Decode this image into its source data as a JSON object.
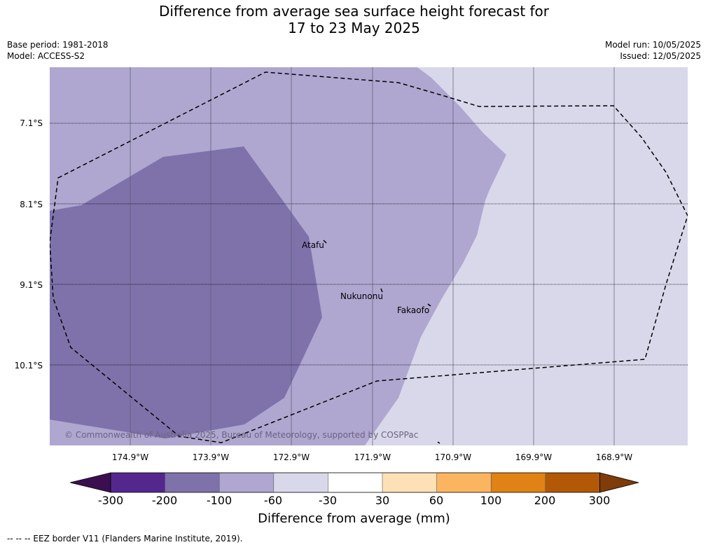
{
  "title_line1": "Difference from average sea surface height forecast for",
  "title_line2": "17 to 23 May 2025",
  "base_period": "Base period: 1981-2018",
  "model": "Model: ACCESS-S2",
  "model_run": "Model run: 10/05/2025",
  "issued": "Issued: 12/05/2025",
  "latitudes": [
    "7.1°S",
    "8.1°S",
    "9.1°S",
    "10.1°S"
  ],
  "longitudes": [
    "174.9°W",
    "173.9°W",
    "172.9°W",
    "171.9°W",
    "170.9°W",
    "169.9°W",
    "168.9°W"
  ],
  "towns": {
    "atafu": "Atafu",
    "nukunonu": "Nukunonu",
    "fakaofo": "Fakaofo"
  },
  "copyright": "© Commonwealth of Australia 2025, Bureau of Meteorology, supported by COSPPac",
  "colorbar": {
    "label": "Difference from average (mm)",
    "ticks": [
      "-300",
      "-200",
      "-100",
      "-60",
      "-30",
      "30",
      "60",
      "100",
      "200",
      "300"
    ],
    "colors": [
      "#3b0f4f",
      "#54278f",
      "#7f72ab",
      "#afa7d0",
      "#d8d8ea",
      "#ffffff",
      "#fde0b6",
      "#fbb561",
      "#e08214",
      "#b35806",
      "#7f3b08"
    ]
  },
  "legend_footer": "--  --  -- EEZ border V11 (Flanders Marine Institute, 2019).",
  "map_colors": {
    "background": "#d8d8ea",
    "band_100": "#afa7d0",
    "band_200": "#7f72ab"
  }
}
